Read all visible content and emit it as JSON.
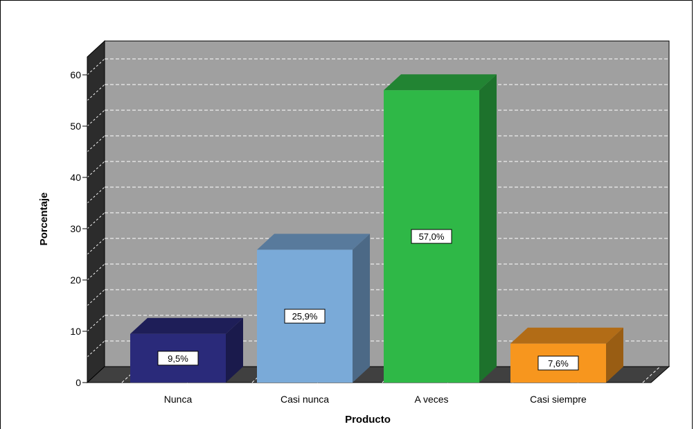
{
  "chart_data": {
    "type": "bar",
    "style": "3d",
    "categories": [
      "Nunca",
      "Casi nunca",
      "A veces",
      "Casi siempre"
    ],
    "values": [
      9.5,
      25.9,
      57.0,
      7.6
    ],
    "data_labels": [
      "9,5%",
      "25,9%",
      "57,0%",
      "7,6%"
    ],
    "colors": [
      "#2a2a7a",
      "#7aaad8",
      "#2fb847",
      "#f7961e"
    ],
    "xlabel": "Producto",
    "ylabel": "Porcentaje",
    "ylim": [
      0,
      60
    ],
    "yticks": [
      0,
      10,
      20,
      30,
      40,
      50,
      60
    ],
    "grid": true,
    "legend": "none",
    "background_color": "#a0a0a0",
    "floor_color": "#404040"
  }
}
